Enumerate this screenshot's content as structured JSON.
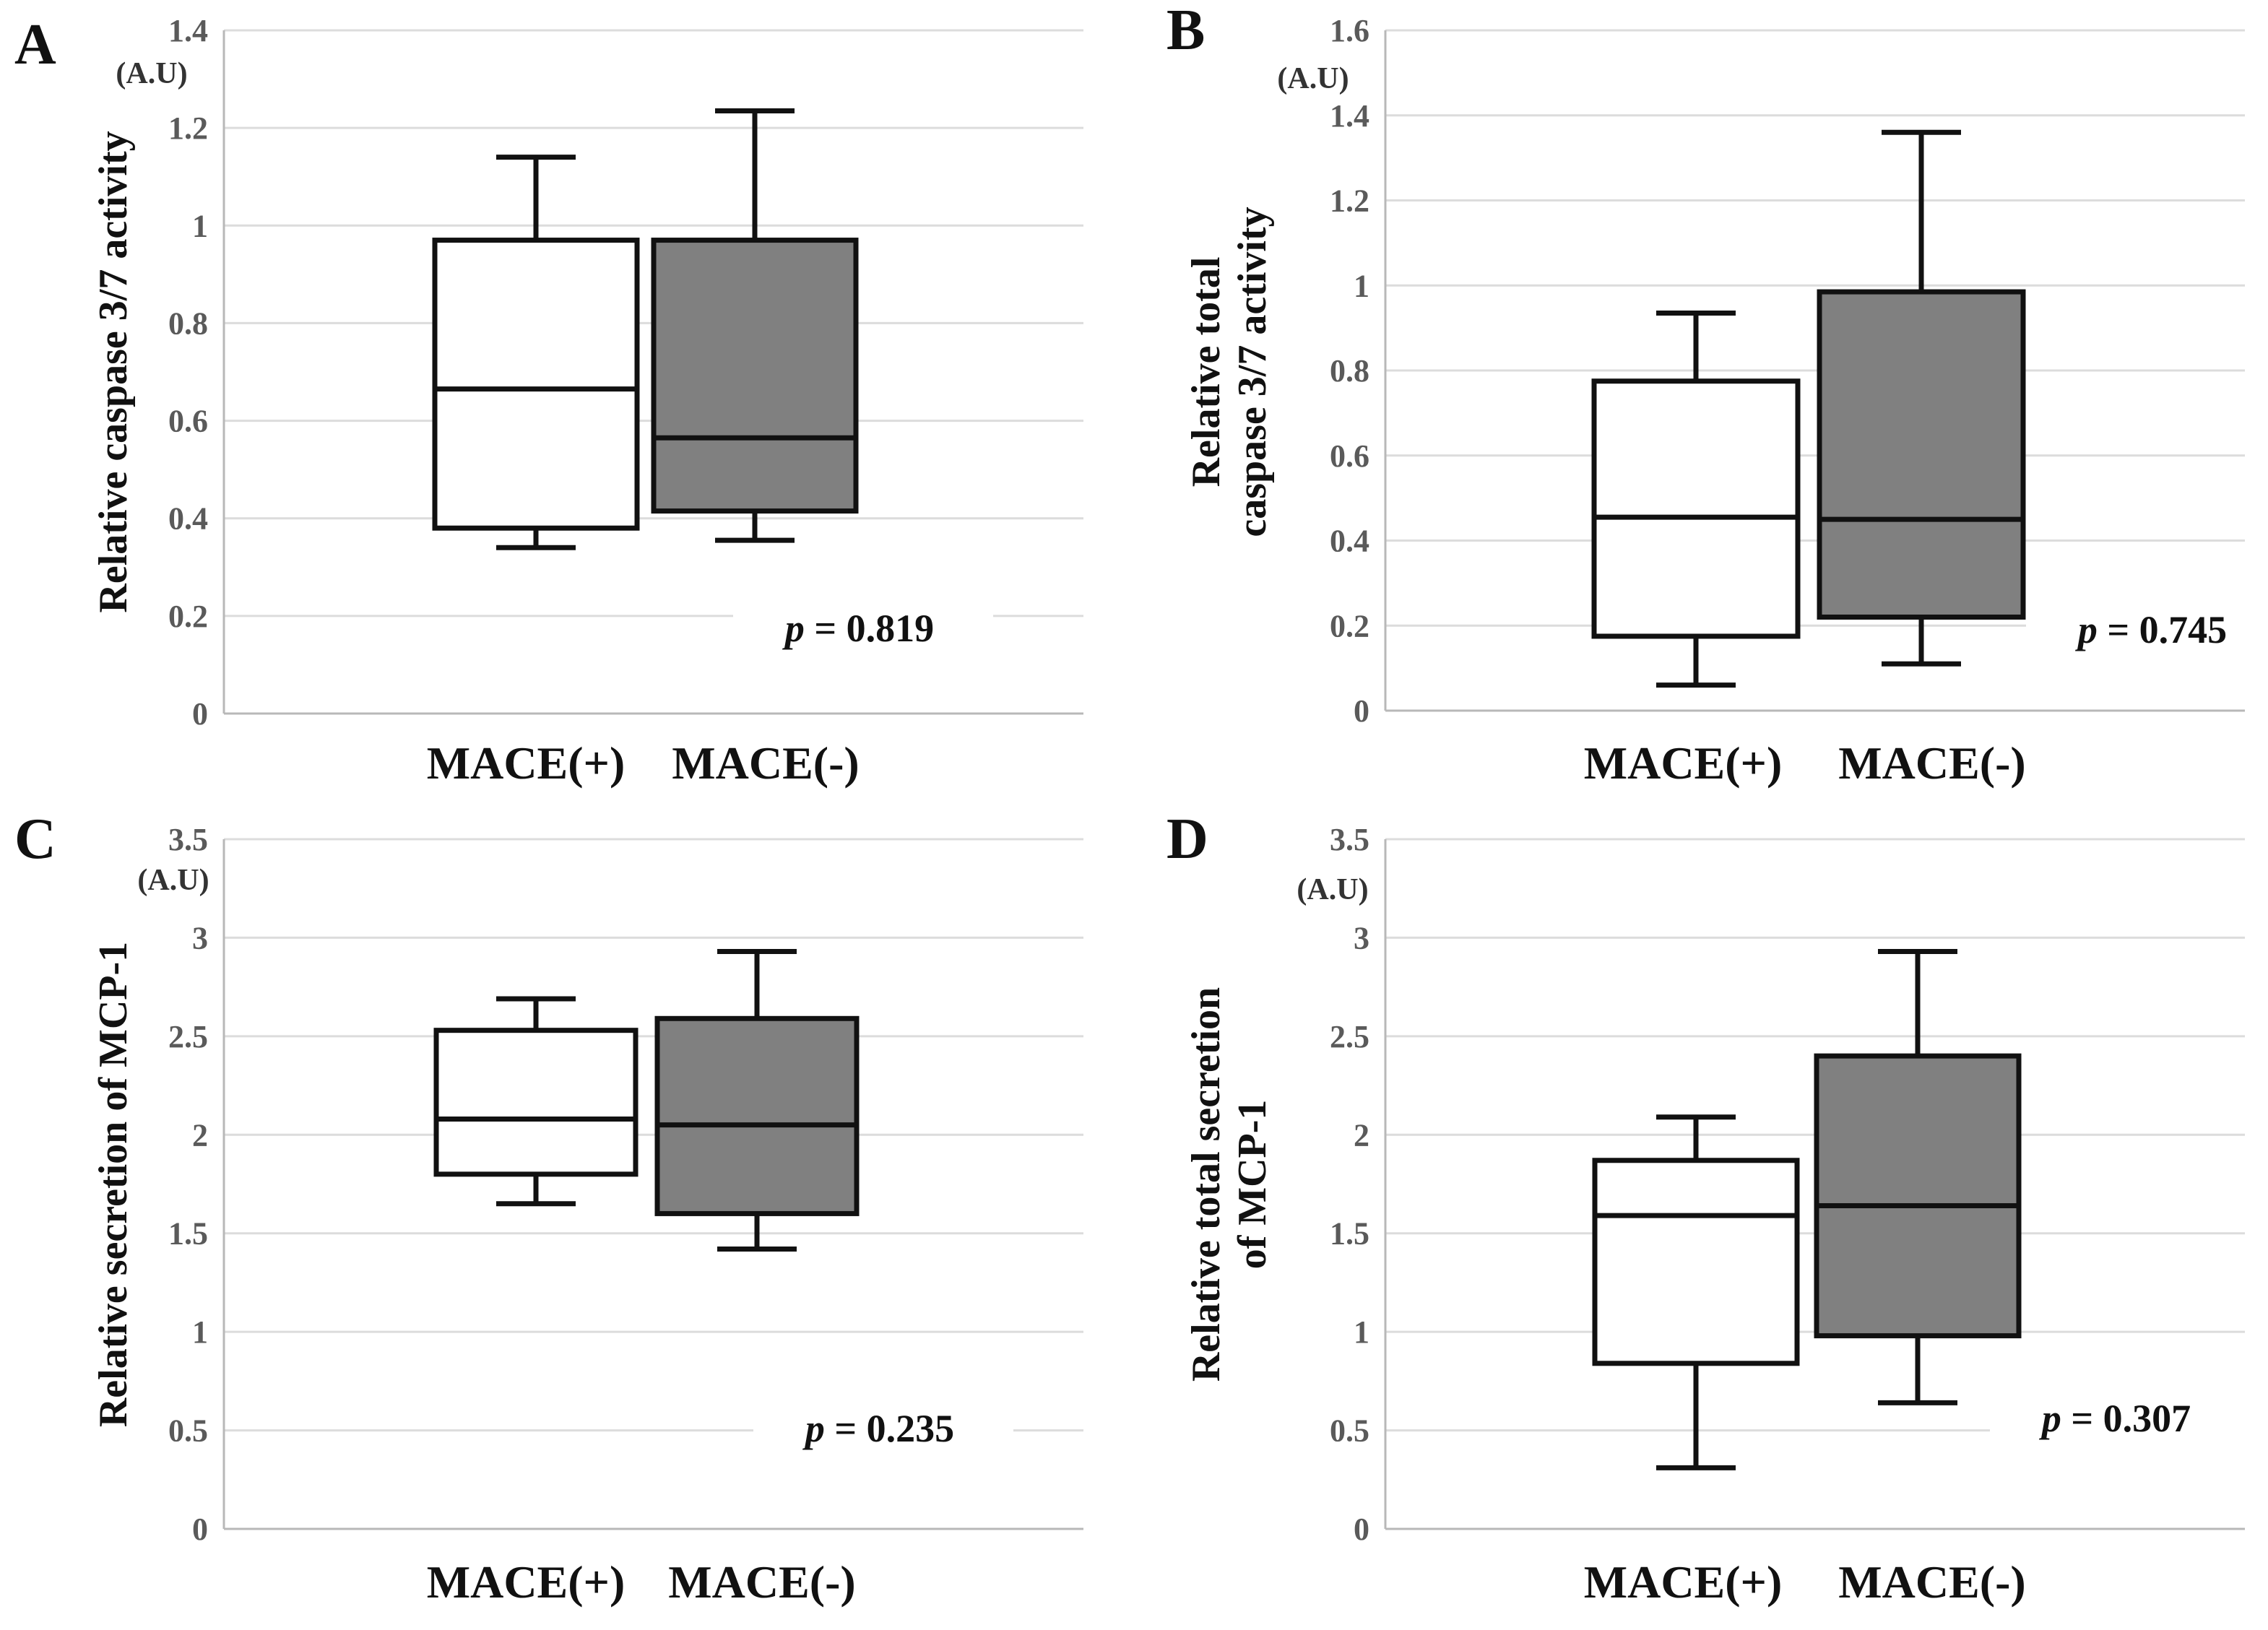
{
  "colors": {
    "mace_pos_fill": "#ffffff",
    "mace_neg_fill": "#808080",
    "stroke": "#111111",
    "grid": "#dcdcdc"
  },
  "chart_data": [
    {
      "type": "box",
      "panel": "A",
      "unit_label": "(A.U)",
      "ylabel": [
        "Relative caspase 3/7 activity"
      ],
      "ylim": [
        0,
        1.4
      ],
      "ticks": [
        "0",
        "0.2",
        "0.4",
        "0.6",
        "0.8",
        "1",
        "1.2",
        "1.4"
      ],
      "categories": [
        "MACE(+)",
        "MACE(-)"
      ],
      "series": [
        {
          "name": "MACE(+)",
          "min": 0.34,
          "q1": 0.38,
          "median": 0.665,
          "q3": 0.97,
          "max": 1.14
        },
        {
          "name": "MACE(-)",
          "min": 0.355,
          "q1": 0.415,
          "median": 0.565,
          "q3": 0.97,
          "max": 1.235
        }
      ],
      "p_prefix": "p",
      "p_text": " = 0.819"
    },
    {
      "type": "box",
      "panel": "B",
      "unit_label": "(A.U)",
      "ylabel": [
        "Relative total",
        "caspase 3/7 activity"
      ],
      "ylim": [
        0,
        1.6
      ],
      "ticks": [
        "0",
        "0.2",
        "0.4",
        "0.6",
        "0.8",
        "1",
        "1.2",
        "1.4",
        "1.6"
      ],
      "categories": [
        "MACE(+)",
        "MACE(-)"
      ],
      "series": [
        {
          "name": "MACE(+)",
          "min": 0.06,
          "q1": 0.175,
          "median": 0.455,
          "q3": 0.775,
          "max": 0.935
        },
        {
          "name": "MACE(-)",
          "min": 0.11,
          "q1": 0.22,
          "median": 0.45,
          "q3": 0.985,
          "max": 1.36
        }
      ],
      "p_prefix": "p",
      "p_text": " = 0.745"
    },
    {
      "type": "box",
      "panel": "C",
      "unit_label": "(A.U)",
      "ylabel": [
        "Relative secretion of MCP-1"
      ],
      "ylim": [
        0,
        3.5
      ],
      "ticks": [
        "0",
        "0.5",
        "1",
        "1.5",
        "2",
        "2.5",
        "3",
        "3.5"
      ],
      "categories": [
        "MACE(+)",
        "MACE(-)"
      ],
      "series": [
        {
          "name": "MACE(+)",
          "min": 1.65,
          "q1": 1.8,
          "median": 2.08,
          "q3": 2.53,
          "max": 2.69
        },
        {
          "name": "MACE(-)",
          "min": 1.42,
          "q1": 1.6,
          "median": 2.05,
          "q3": 2.59,
          "max": 2.93
        }
      ],
      "p_prefix": "p",
      "p_text": " = 0.235"
    },
    {
      "type": "box",
      "panel": "D",
      "unit_label": "(A.U)",
      "ylabel": [
        "Relative total secretion",
        "of MCP-1"
      ],
      "ylim": [
        0,
        3.5
      ],
      "ticks": [
        "0",
        "0.5",
        "1",
        "1.5",
        "2",
        "2.5",
        "3",
        "3.5"
      ],
      "categories": [
        "MACE(+)",
        "MACE(-)"
      ],
      "series": [
        {
          "name": "MACE(+)",
          "min": 0.31,
          "q1": 0.84,
          "median": 1.59,
          "q3": 1.87,
          "max": 2.09
        },
        {
          "name": "MACE(-)",
          "min": 0.64,
          "q1": 0.98,
          "median": 1.64,
          "q3": 2.4,
          "max": 2.93
        }
      ],
      "p_prefix": "p",
      "p_text": " = 0.307"
    }
  ]
}
